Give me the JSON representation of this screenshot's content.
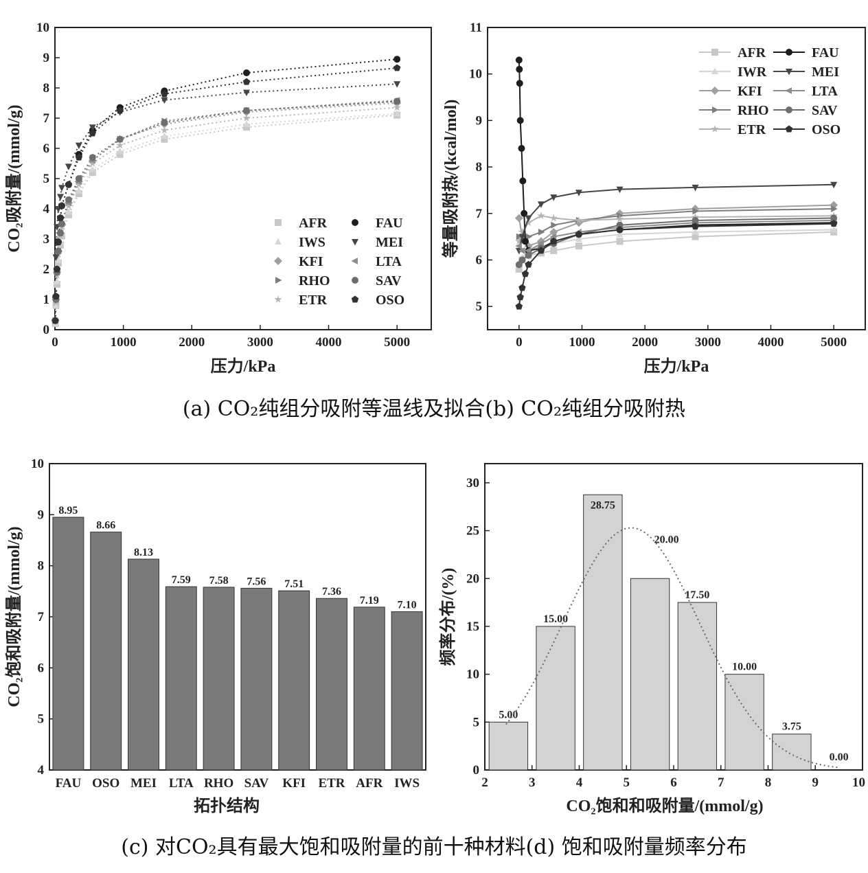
{
  "captions": {
    "top": "(a) CO₂纯组分吸附等温线及拟合(b) CO₂纯组分吸附热",
    "bottom": "(c) 对CO₂具有最大饱和吸附量的前十种材料(d) 饱和吸附量频率分布"
  },
  "chart_data": [
    {
      "id": "a",
      "type": "scatter",
      "xlabel": "压力/kPa",
      "ylabel": "CO₂吸附量/(mmol/g)",
      "xlim": [
        0,
        5500
      ],
      "ylim": [
        0,
        10
      ],
      "xticks": [
        "0",
        "1000",
        "2000",
        "3000",
        "4000",
        "5000"
      ],
      "yticks": [
        "0",
        "1",
        "2",
        "3",
        "4",
        "5",
        "6",
        "7",
        "8",
        "9",
        "10"
      ],
      "x": [
        5,
        15,
        30,
        50,
        80,
        100,
        200,
        350,
        550,
        950,
        1600,
        2800,
        5000
      ],
      "legend_placement": "bottom-right",
      "fit_lines": "dotted",
      "series": [
        {
          "name": "AFR",
          "marker": "square",
          "color": "#c8c8c8",
          "values": [
            0.2,
            0.8,
            1.5,
            2.2,
            2.8,
            3.1,
            3.8,
            4.5,
            5.2,
            5.8,
            6.3,
            6.7,
            7.1
          ]
        },
        {
          "name": "IWS",
          "marker": "triangle-up",
          "color": "#d6d6d6",
          "values": [
            0.2,
            0.8,
            1.6,
            2.3,
            2.9,
            3.2,
            3.9,
            4.6,
            5.3,
            5.9,
            6.4,
            6.8,
            7.15
          ]
        },
        {
          "name": "KFI",
          "marker": "diamond",
          "color": "#a0a0a0",
          "values": [
            0.3,
            1.0,
            1.9,
            2.6,
            3.2,
            3.5,
            4.2,
            4.9,
            5.6,
            6.3,
            6.8,
            7.2,
            7.5
          ]
        },
        {
          "name": "RHO",
          "marker": "triangle-right",
          "color": "#7d7d7d",
          "values": [
            0.3,
            1.0,
            1.9,
            2.6,
            3.2,
            3.5,
            4.2,
            4.9,
            5.6,
            6.3,
            6.9,
            7.25,
            7.55
          ]
        },
        {
          "name": "ETR",
          "marker": "star",
          "color": "#b4b4b4",
          "values": [
            0.3,
            0.9,
            1.8,
            2.5,
            3.1,
            3.4,
            4.1,
            4.8,
            5.5,
            6.1,
            6.6,
            7.0,
            7.35
          ]
        },
        {
          "name": "FAU",
          "marker": "circle",
          "color": "#1e1e1e",
          "values": [
            0.3,
            1.1,
            2.0,
            2.9,
            3.7,
            4.1,
            4.8,
            5.8,
            6.6,
            7.35,
            7.9,
            8.5,
            8.95
          ]
        },
        {
          "name": "MEI",
          "marker": "triangle-down",
          "color": "#464646",
          "values": [
            1.0,
            2.4,
            3.4,
            4.0,
            4.4,
            4.7,
            5.4,
            6.1,
            6.7,
            7.2,
            7.6,
            7.85,
            8.13
          ]
        },
        {
          "name": "LTA",
          "marker": "triangle-left",
          "color": "#8c8c8c",
          "values": [
            0.3,
            1.0,
            1.9,
            2.6,
            3.2,
            3.5,
            4.2,
            4.9,
            5.6,
            6.3,
            6.9,
            7.25,
            7.59
          ]
        },
        {
          "name": "SAV",
          "marker": "circle",
          "color": "#6e6e6e",
          "values": [
            0.3,
            1.0,
            1.9,
            2.6,
            3.2,
            3.5,
            4.3,
            5.0,
            5.7,
            6.3,
            6.85,
            7.25,
            7.56
          ]
        },
        {
          "name": "OSO",
          "marker": "pentagon",
          "color": "#323232",
          "values": [
            0.3,
            1.1,
            2.0,
            2.9,
            3.7,
            4.1,
            4.8,
            5.7,
            6.5,
            7.25,
            7.8,
            8.2,
            8.66
          ]
        }
      ]
    },
    {
      "id": "b",
      "type": "line",
      "xlabel": "压力/kPa",
      "ylabel": "等量吸附热/(kcal/mol)",
      "xlim": [
        -500,
        5500
      ],
      "ylim": [
        4.5,
        11
      ],
      "xticks": [
        "0",
        "1000",
        "2000",
        "3000",
        "4000",
        "5000"
      ],
      "yticks": [
        "5",
        "6",
        "7",
        "8",
        "9",
        "10",
        "11"
      ],
      "legend_placement": "top-right",
      "series": [
        {
          "name": "AFR",
          "marker": "square",
          "color": "#c8c8c8",
          "points": [
            [
              0,
              5.8
            ],
            [
              50,
              6.0
            ],
            [
              150,
              6.1
            ],
            [
              350,
              6.15
            ],
            [
              550,
              6.2
            ],
            [
              950,
              6.3
            ],
            [
              1600,
              6.4
            ],
            [
              2800,
              6.5
            ],
            [
              5000,
              6.6
            ]
          ]
        },
        {
          "name": "IWR",
          "marker": "triangle-up",
          "color": "#d6d6d6",
          "points": [
            [
              0,
              5.9
            ],
            [
              50,
              6.05
            ],
            [
              150,
              6.2
            ],
            [
              350,
              6.3
            ],
            [
              550,
              6.35
            ],
            [
              950,
              6.45
            ],
            [
              1600,
              6.55
            ],
            [
              2800,
              6.6
            ],
            [
              5000,
              6.65
            ]
          ]
        },
        {
          "name": "KFI",
          "marker": "diamond",
          "color": "#a0a0a0",
          "points": [
            [
              0,
              6.9
            ],
            [
              50,
              6.5
            ],
            [
              150,
              6.3
            ],
            [
              350,
              6.4
            ],
            [
              550,
              6.6
            ],
            [
              950,
              6.8
            ],
            [
              1600,
              7.0
            ],
            [
              2800,
              7.1
            ],
            [
              5000,
              7.18
            ]
          ]
        },
        {
          "name": "RHO",
          "marker": "triangle-right",
          "color": "#7d7d7d",
          "points": [
            [
              0,
              6.5
            ],
            [
              50,
              6.4
            ],
            [
              150,
              6.5
            ],
            [
              350,
              6.6
            ],
            [
              550,
              6.75
            ],
            [
              950,
              6.85
            ],
            [
              1600,
              6.95
            ],
            [
              2800,
              7.05
            ],
            [
              5000,
              7.1
            ]
          ]
        },
        {
          "name": "ETR",
          "marker": "star",
          "color": "#b4b4b4",
          "points": [
            [
              0,
              6.4
            ],
            [
              50,
              6.6
            ],
            [
              150,
              6.8
            ],
            [
              350,
              6.95
            ],
            [
              550,
              6.9
            ],
            [
              950,
              6.85
            ],
            [
              1600,
              6.88
            ],
            [
              2800,
              6.92
            ],
            [
              5000,
              6.95
            ]
          ]
        },
        {
          "name": "FAU",
          "marker": "circle",
          "color": "#1e1e1e",
          "points": [
            [
              0,
              10.3
            ],
            [
              5,
              10.1
            ],
            [
              10,
              9.8
            ],
            [
              20,
              9.0
            ],
            [
              40,
              8.4
            ],
            [
              60,
              7.7
            ],
            [
              80,
              7.0
            ],
            [
              100,
              6.4
            ],
            [
              150,
              6.2
            ],
            [
              350,
              6.25
            ],
            [
              550,
              6.4
            ],
            [
              950,
              6.55
            ],
            [
              1600,
              6.65
            ],
            [
              2800,
              6.75
            ],
            [
              5000,
              6.8
            ]
          ]
        },
        {
          "name": "MEI",
          "marker": "triangle-down",
          "color": "#464646",
          "points": [
            [
              0,
              6.2
            ],
            [
              50,
              6.5
            ],
            [
              150,
              6.9
            ],
            [
              350,
              7.2
            ],
            [
              550,
              7.35
            ],
            [
              950,
              7.45
            ],
            [
              1600,
              7.52
            ],
            [
              2800,
              7.56
            ],
            [
              5000,
              7.62
            ]
          ]
        },
        {
          "name": "LTA",
          "marker": "triangle-left",
          "color": "#8c8c8c",
          "points": [
            [
              0,
              6.3
            ],
            [
              50,
              6.2
            ],
            [
              150,
              6.2
            ],
            [
              350,
              6.35
            ],
            [
              550,
              6.5
            ],
            [
              950,
              6.6
            ],
            [
              1600,
              6.7
            ],
            [
              2800,
              6.8
            ],
            [
              5000,
              6.85
            ]
          ]
        },
        {
          "name": "SAV",
          "marker": "circle",
          "color": "#6e6e6e",
          "points": [
            [
              0,
              5.9
            ],
            [
              50,
              6.0
            ],
            [
              150,
              6.1
            ],
            [
              350,
              6.25
            ],
            [
              550,
              6.35
            ],
            [
              950,
              6.55
            ],
            [
              1600,
              6.75
            ],
            [
              2800,
              6.85
            ],
            [
              5000,
              6.9
            ]
          ]
        },
        {
          "name": "OSO",
          "marker": "pentagon",
          "color": "#323232",
          "points": [
            [
              0,
              5.0
            ],
            [
              20,
              5.2
            ],
            [
              50,
              5.4
            ],
            [
              100,
              5.7
            ],
            [
              150,
              5.9
            ],
            [
              350,
              6.2
            ],
            [
              550,
              6.4
            ],
            [
              950,
              6.55
            ],
            [
              1600,
              6.65
            ],
            [
              2800,
              6.72
            ],
            [
              5000,
              6.78
            ]
          ]
        }
      ]
    },
    {
      "id": "c",
      "type": "bar",
      "xlabel": "拓扑结构",
      "ylabel": "CO₂饱和吸附量/(mmol/g)",
      "ylim": [
        4,
        10
      ],
      "yticks": [
        "4",
        "5",
        "6",
        "7",
        "8",
        "9",
        "10"
      ],
      "categories": [
        "FAU",
        "OSO",
        "MEI",
        "LTA",
        "RHO",
        "SAV",
        "KFI",
        "ETR",
        "AFR",
        "IWS"
      ],
      "values": [
        8.95,
        8.66,
        8.13,
        7.59,
        7.58,
        7.56,
        7.51,
        7.36,
        7.19,
        7.1
      ],
      "value_labels": [
        "8.95",
        "8.66",
        "8.13",
        "7.59",
        "7.58",
        "7.56",
        "7.51",
        "7.36",
        "7.19",
        "7.10"
      ],
      "bar_color": "#7a7a7a"
    },
    {
      "id": "d",
      "type": "bar",
      "xlabel": "CO₂饱和和吸附量/(mmol/g)",
      "ylabel": "频率分布/(%)",
      "xlim": [
        2,
        10
      ],
      "ylim": [
        0,
        32
      ],
      "xticks": [
        "2",
        "3",
        "4",
        "5",
        "6",
        "7",
        "8",
        "9",
        "10"
      ],
      "yticks": [
        "0",
        "5",
        "10",
        "15",
        "20",
        "25",
        "30"
      ],
      "bin_edges": [
        2,
        3,
        4,
        5,
        6,
        7,
        8,
        9,
        10
      ],
      "values": [
        5.0,
        15.0,
        28.75,
        20.0,
        17.5,
        10.0,
        3.75,
        0.0
      ],
      "value_labels": [
        "5.00",
        "15.00",
        "28.75",
        "20.00",
        "17.50",
        "10.00",
        "3.75",
        "0.00"
      ],
      "bar_color": "#d3d3d3",
      "fit_curve": {
        "type": "normal",
        "mean": 5.1,
        "sd": 1.45,
        "peak": 25.3,
        "x_range": [
          2.45,
          9.5
        ],
        "style": "dotted"
      }
    }
  ]
}
